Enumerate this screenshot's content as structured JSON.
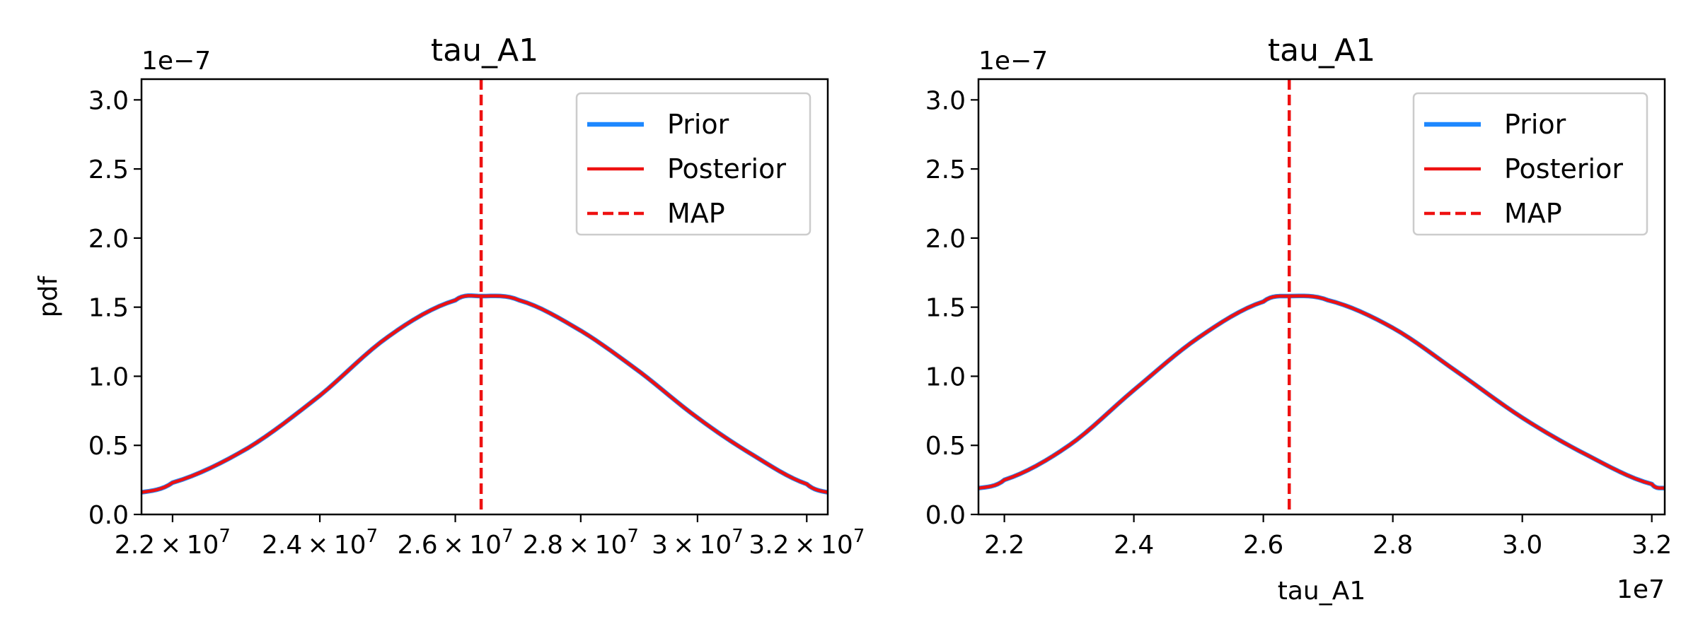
{
  "chart_data": [
    {
      "type": "line",
      "title": "tau_A1",
      "xlabel": "",
      "ylabel": "pdf",
      "y_offset_label": "1e−7",
      "x_offset_label": "",
      "xlim": [
        21600000.0,
        32400000.0
      ],
      "ylim": [
        0,
        3.15
      ],
      "x_scale": "log",
      "y_ticks": [
        0.0,
        0.5,
        1.0,
        1.5,
        2.0,
        2.5,
        3.0
      ],
      "y_tick_labels": [
        "0.0",
        "0.5",
        "1.0",
        "1.5",
        "2.0",
        "2.5",
        "3.0"
      ],
      "x_ticks": [
        22000000.0,
        24000000.0,
        26000000.0,
        28000000.0,
        30000000.0,
        32000000.0
      ],
      "x_tick_labels": [
        {
          "mant": "2.2",
          "exp": "7"
        },
        {
          "mant": "2.4",
          "exp": "7"
        },
        {
          "mant": "2.6",
          "exp": "7"
        },
        {
          "mant": "2.8",
          "exp": "7"
        },
        {
          "mant": "3",
          "exp": "7"
        },
        {
          "mant": "3.2",
          "exp": "7"
        }
      ],
      "grid": false,
      "legend_position": "top-right",
      "map_value": 26400000.0,
      "series": [
        {
          "name": "Prior",
          "color": "#1e88ff",
          "style": "solid",
          "x": [
            21600000.0,
            22000000.0,
            23000000.0,
            24000000.0,
            25000000.0,
            26000000.0,
            26400000.0,
            27000000.0,
            28000000.0,
            29000000.0,
            30000000.0,
            31000000.0,
            32000000.0,
            32400000.0
          ],
          "y": [
            0.16,
            0.23,
            0.48,
            0.86,
            1.29,
            1.55,
            1.58,
            1.55,
            1.33,
            1.03,
            0.7,
            0.43,
            0.22,
            0.16
          ]
        },
        {
          "name": "Posterior",
          "color": "#ee1111",
          "style": "solid",
          "x": [
            21600000.0,
            22000000.0,
            23000000.0,
            24000000.0,
            25000000.0,
            26000000.0,
            26400000.0,
            27000000.0,
            28000000.0,
            29000000.0,
            30000000.0,
            31000000.0,
            32000000.0,
            32400000.0
          ],
          "y": [
            0.16,
            0.23,
            0.48,
            0.86,
            1.29,
            1.55,
            1.58,
            1.55,
            1.33,
            1.03,
            0.7,
            0.43,
            0.22,
            0.16
          ]
        },
        {
          "name": "MAP",
          "color": "#ee1111",
          "style": "dashed"
        }
      ]
    },
    {
      "type": "line",
      "title": "tau_A1",
      "xlabel": "tau_A1",
      "ylabel": "",
      "y_offset_label": "1e−7",
      "x_offset_label": "1e7",
      "xlim": [
        21600000.0,
        32200000.0
      ],
      "ylim": [
        0,
        3.15
      ],
      "x_scale": "linear",
      "y_ticks": [
        0.0,
        0.5,
        1.0,
        1.5,
        2.0,
        2.5,
        3.0
      ],
      "y_tick_labels": [
        "0.0",
        "0.5",
        "1.0",
        "1.5",
        "2.0",
        "2.5",
        "3.0"
      ],
      "x_ticks": [
        22000000.0,
        24000000.0,
        26000000.0,
        28000000.0,
        30000000.0,
        32000000.0
      ],
      "x_tick_labels": [
        "2.2",
        "2.4",
        "2.6",
        "2.8",
        "3.0",
        "3.2"
      ],
      "grid": false,
      "legend_position": "top-right",
      "map_value": 26400000.0,
      "series": [
        {
          "name": "Prior",
          "color": "#1e88ff",
          "style": "solid",
          "x": [
            21600000.0,
            22000000.0,
            23000000.0,
            24000000.0,
            25000000.0,
            26000000.0,
            26400000.0,
            27000000.0,
            28000000.0,
            29000000.0,
            30000000.0,
            31000000.0,
            32000000.0,
            32200000.0
          ],
          "y": [
            0.19,
            0.25,
            0.5,
            0.9,
            1.28,
            1.54,
            1.58,
            1.55,
            1.35,
            1.03,
            0.7,
            0.43,
            0.22,
            0.19
          ]
        },
        {
          "name": "Posterior",
          "color": "#ee1111",
          "style": "solid",
          "x": [
            21600000.0,
            22000000.0,
            23000000.0,
            24000000.0,
            25000000.0,
            26000000.0,
            26400000.0,
            27000000.0,
            28000000.0,
            29000000.0,
            30000000.0,
            31000000.0,
            32000000.0,
            32200000.0
          ],
          "y": [
            0.19,
            0.25,
            0.5,
            0.9,
            1.28,
            1.54,
            1.58,
            1.55,
            1.35,
            1.03,
            0.7,
            0.43,
            0.22,
            0.19
          ]
        },
        {
          "name": "MAP",
          "color": "#ee1111",
          "style": "dashed"
        }
      ]
    }
  ]
}
